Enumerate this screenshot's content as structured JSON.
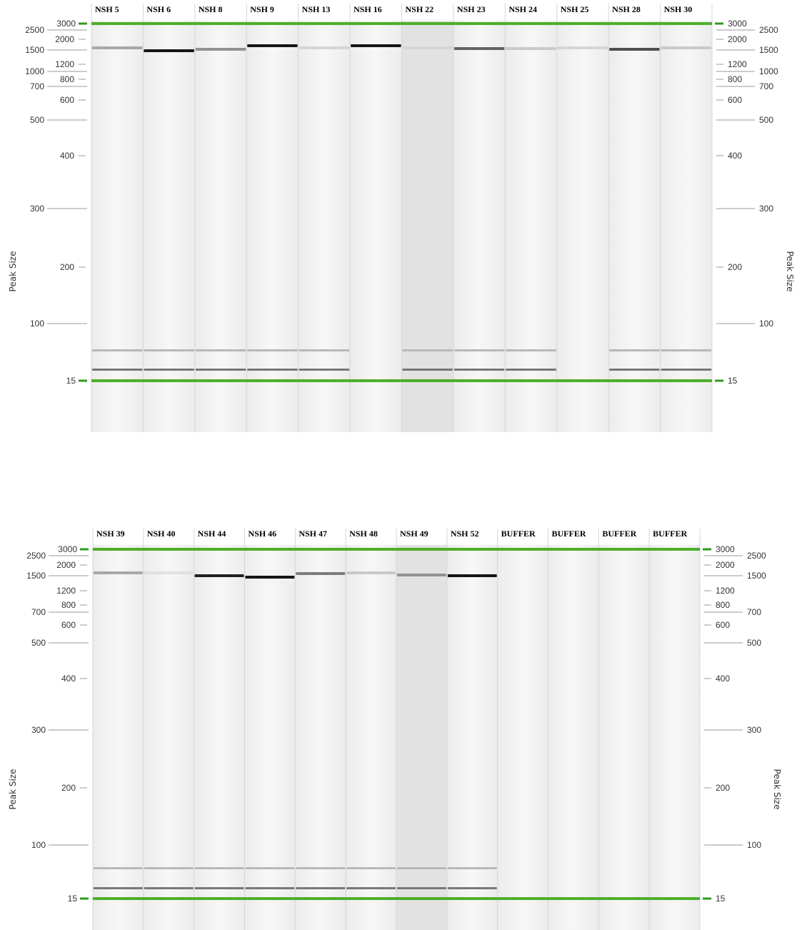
{
  "panels": [
    {
      "lanes": [
        "NSH 5",
        "NSH 6",
        "NSH 8",
        "NSH 9",
        "NSH 13",
        "NSH 16",
        "NSH 22",
        "NSH 23",
        "NSH 24",
        "NSH 25",
        "NSH 28",
        "NSH 30"
      ],
      "left_axis": {
        "title": "Peak Size",
        "labels": [
          "3000",
          "2500",
          "2000",
          "1500",
          "1200",
          "1000",
          "800",
          "700",
          "600",
          "500",
          "400",
          "300",
          "200",
          "100",
          "15"
        ]
      },
      "right_axis": {
        "title": "Peak Size",
        "labels": [
          "3000",
          "2500",
          "2000",
          "1500",
          "1200",
          "1000",
          "800",
          "700",
          "600",
          "500",
          "400",
          "300",
          "200",
          "100",
          "15"
        ]
      }
    },
    {
      "lanes": [
        "NSH 39",
        "NSH 40",
        "NSH 44",
        "NSH 46",
        "NSH 47",
        "NSH 48",
        "NSH 49",
        "NSH 52",
        "BUFFER",
        "BUFFER",
        "BUFFER",
        "BUFFER"
      ],
      "left_axis": {
        "title": "Peak Size",
        "labels": [
          "3000",
          "2500",
          "2000",
          "1500",
          "1200",
          "800",
          "700",
          "600",
          "500",
          "400",
          "300",
          "200",
          "100",
          "15"
        ]
      },
      "right_axis": {
        "title": "Peak Size",
        "labels": [
          "3000",
          "2500",
          "2000",
          "1500",
          "1200",
          "800",
          "700",
          "600",
          "500",
          "400",
          "300",
          "200",
          "100",
          "15"
        ]
      }
    }
  ]
}
